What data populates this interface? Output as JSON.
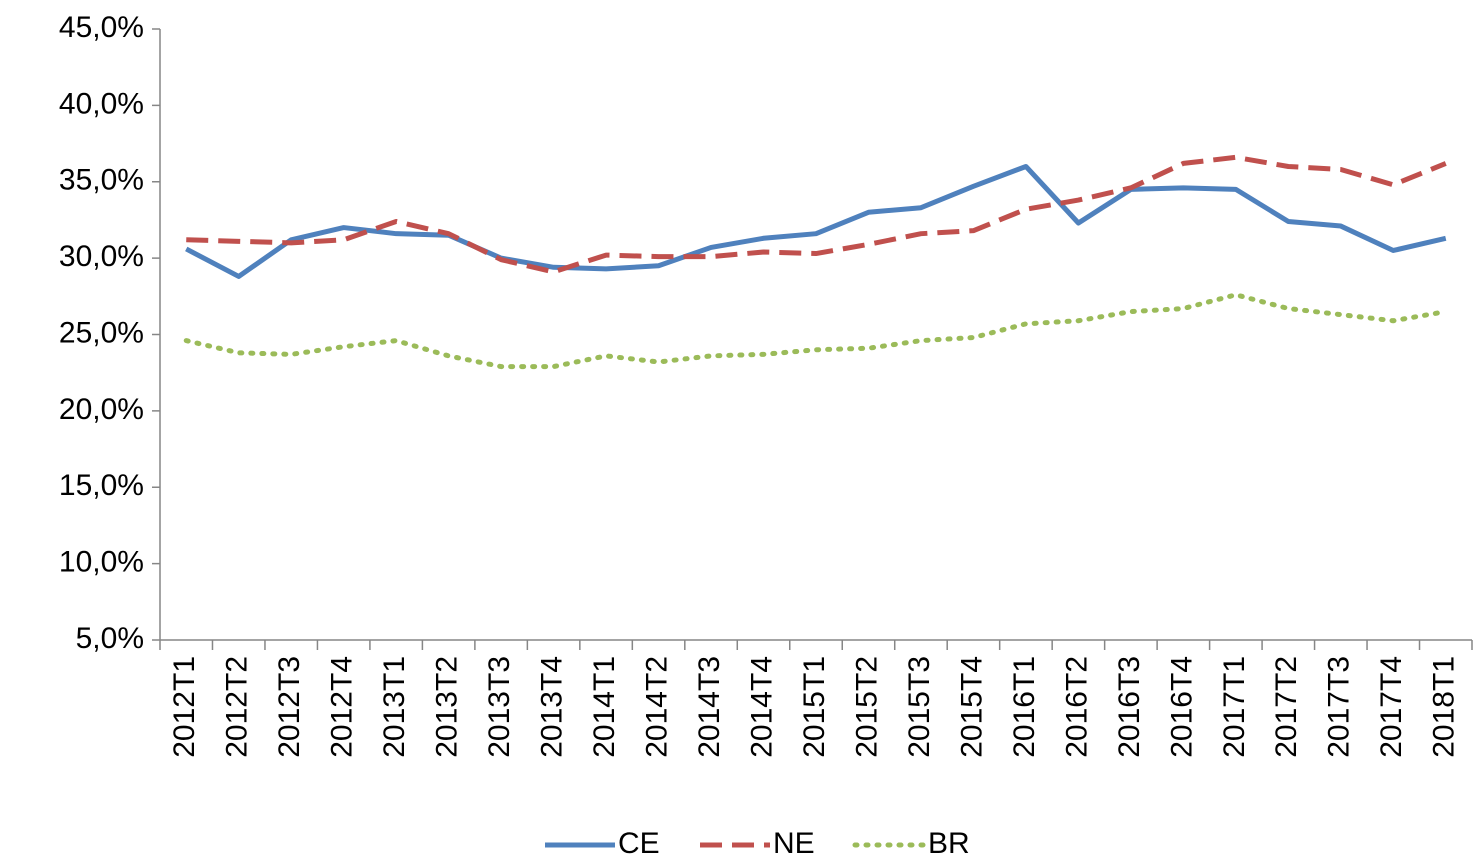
{
  "chart_data": {
    "type": "line",
    "categories": [
      "2012T1",
      "2012T2",
      "2012T3",
      "2012T4",
      "2013T1",
      "2013T2",
      "2013T3",
      "2013T4",
      "2014T1",
      "2014T2",
      "2014T3",
      "2014T4",
      "2015T1",
      "2015T2",
      "2015T3",
      "2015T4",
      "2016T1",
      "2016T2",
      "2016T3",
      "2016T4",
      "2017T1",
      "2017T2",
      "2017T3",
      "2017T4",
      "2018T1"
    ],
    "series": [
      {
        "name": "CE",
        "color": "#4f81bd",
        "dash": "solid",
        "values": [
          30.6,
          28.8,
          31.2,
          32.0,
          31.6,
          31.5,
          30.0,
          29.4,
          29.3,
          29.5,
          30.7,
          31.3,
          31.6,
          33.0,
          33.3,
          34.7,
          36.0,
          32.3,
          34.5,
          34.6,
          34.5,
          32.4,
          32.1,
          30.5,
          31.3
        ]
      },
      {
        "name": "NE",
        "color": "#c0504d",
        "dash": "dashed",
        "values": [
          31.2,
          31.1,
          31.0,
          31.2,
          32.4,
          31.6,
          29.9,
          29.1,
          30.2,
          30.1,
          30.1,
          30.4,
          30.3,
          30.9,
          31.6,
          31.8,
          33.2,
          33.8,
          34.6,
          36.2,
          36.6,
          36.0,
          35.8,
          34.8,
          36.2
        ]
      },
      {
        "name": "BR",
        "color": "#9bbb59",
        "dash": "dotted",
        "values": [
          24.6,
          23.8,
          23.7,
          24.2,
          24.6,
          23.6,
          22.9,
          22.9,
          23.6,
          23.2,
          23.6,
          23.7,
          24.0,
          24.1,
          24.6,
          24.8,
          25.7,
          25.9,
          26.5,
          26.7,
          27.6,
          26.7,
          26.3,
          25.9,
          26.5
        ]
      }
    ],
    "ylim": [
      5,
      45
    ],
    "yticks": [
      {
        "value": 5,
        "label": "5,0%"
      },
      {
        "value": 10,
        "label": "10,0%"
      },
      {
        "value": 15,
        "label": "15,0%"
      },
      {
        "value": 20,
        "label": "20,0%"
      },
      {
        "value": 25,
        "label": "25,0%"
      },
      {
        "value": 30,
        "label": "30,0%"
      },
      {
        "value": 35,
        "label": "35,0%"
      },
      {
        "value": 40,
        "label": "40,0%"
      },
      {
        "value": 45,
        "label": "45,0%"
      }
    ],
    "grid": false,
    "legend": "bottom"
  }
}
